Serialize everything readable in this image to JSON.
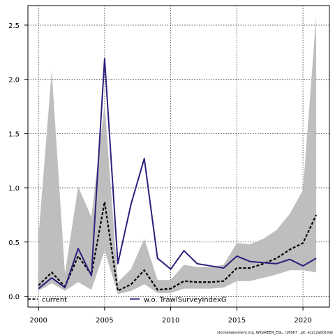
{
  "chart_data": {
    "type": "line",
    "title": "",
    "xlabel": "",
    "ylabel": "",
    "xlim": [
      1999.2,
      2022.0
    ],
    "ylim": [
      -0.1,
      2.68
    ],
    "x_ticks": [
      2000,
      2005,
      2010,
      2015,
      2020
    ],
    "y_ticks": [
      0.0,
      0.5,
      1.0,
      1.5,
      2.0,
      2.5
    ],
    "y_tick_labels": [
      "0.0",
      "0.5",
      "1.0",
      "1.5",
      "2.0",
      "2.5"
    ],
    "grid": true,
    "legend_placement": "bottom",
    "x": [
      2000,
      2001,
      2002,
      2003,
      2004,
      2005,
      2006,
      2007,
      2008,
      2009,
      2010,
      2011,
      2012,
      2013,
      2014,
      2015,
      2016,
      2017,
      2018,
      2019,
      2020,
      2021
    ],
    "band": {
      "color": "#bebebe",
      "lower": [
        0.05,
        0.12,
        0.05,
        0.13,
        0.06,
        0.42,
        0.02,
        0.05,
        0.11,
        0.03,
        0.03,
        0.07,
        0.07,
        0.07,
        0.08,
        0.14,
        0.14,
        0.17,
        0.2,
        0.24,
        0.24,
        0.22
      ],
      "upper": [
        0.55,
        2.08,
        0.21,
        1.01,
        0.73,
        1.78,
        0.13,
        0.25,
        0.53,
        0.15,
        0.15,
        0.29,
        0.27,
        0.27,
        0.29,
        0.49,
        0.48,
        0.53,
        0.61,
        0.76,
        0.98,
        2.58
      ]
    },
    "series": [
      {
        "name": "current",
        "color": "#000000",
        "style": "dashed",
        "values": [
          0.1,
          0.22,
          0.09,
          0.37,
          0.2,
          0.87,
          0.05,
          0.11,
          0.24,
          0.06,
          0.07,
          0.14,
          0.13,
          0.13,
          0.14,
          0.26,
          0.26,
          0.3,
          0.35,
          0.43,
          0.49,
          0.75
        ]
      },
      {
        "name": "w.o. TrawlSurveyIndexG",
        "color": "#2a1f7a",
        "style": "solid",
        "values": [
          0.07,
          0.17,
          0.08,
          0.44,
          0.19,
          2.19,
          0.3,
          0.85,
          1.27,
          0.35,
          0.25,
          0.42,
          0.3,
          0.28,
          0.26,
          0.37,
          0.32,
          0.31,
          0.3,
          0.34,
          0.28,
          0.35
        ]
      }
    ],
    "legend": [
      "current",
      "w.o. TrawlSurveyIndexG"
    ],
    "credit": "stockassessment.org, WKGREEN_EGL, r16667 , git: ec2c2a0c6dde"
  }
}
